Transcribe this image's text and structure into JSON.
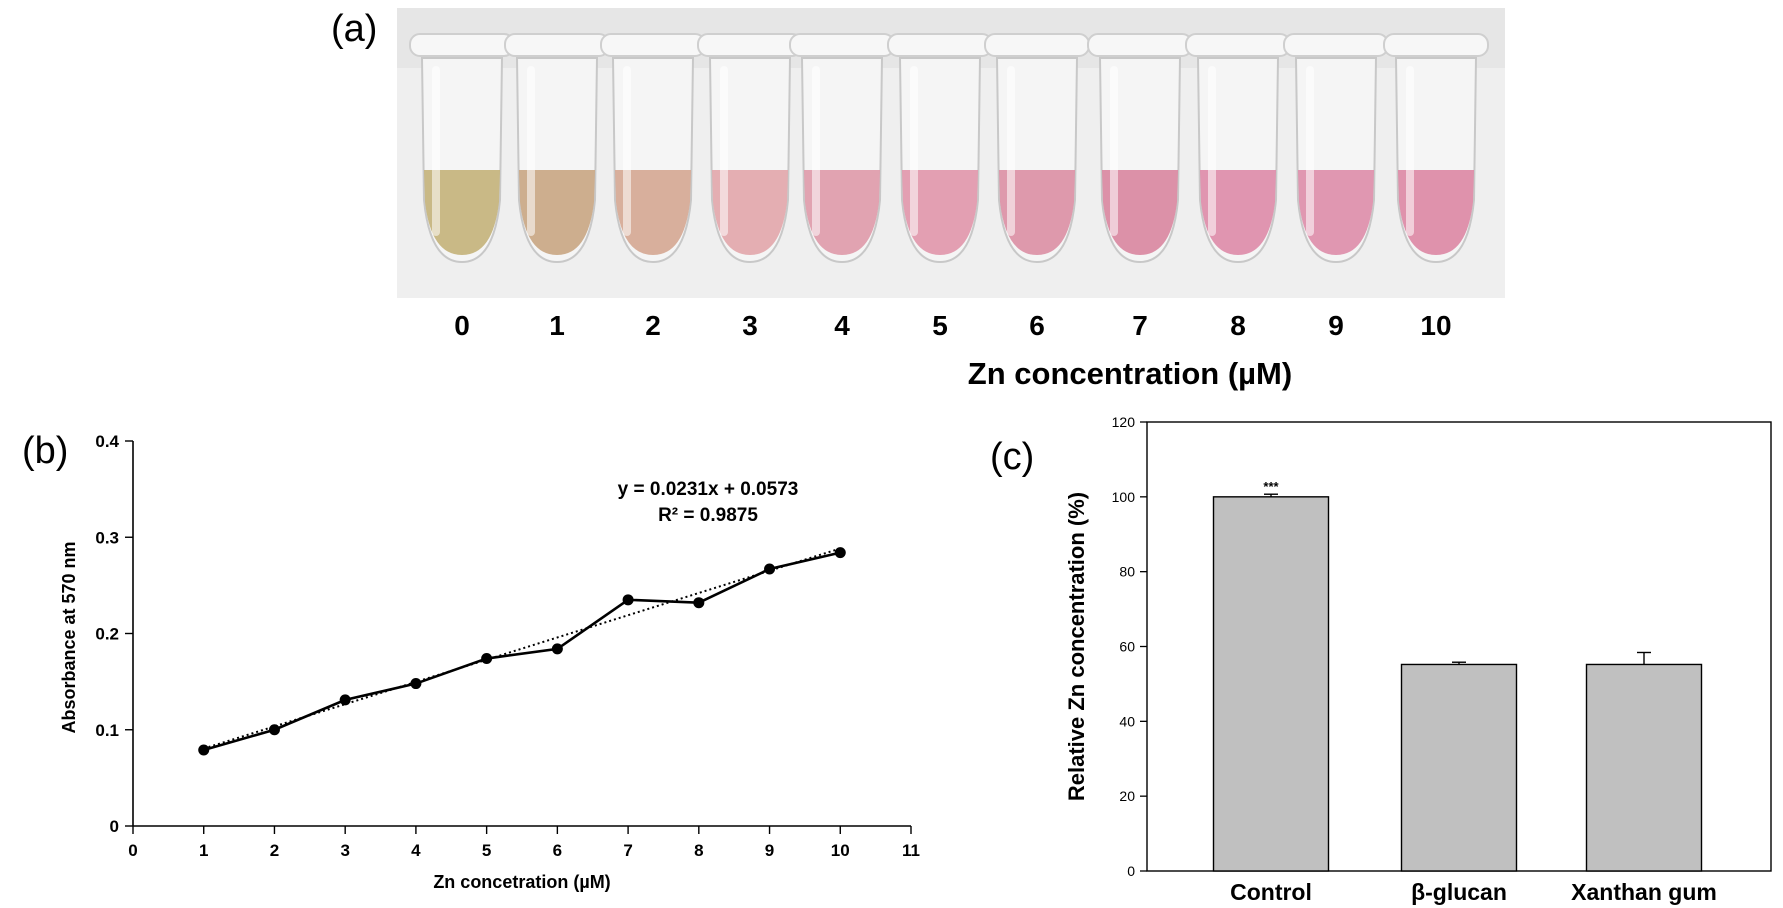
{
  "panels": {
    "a": "(a)",
    "b": "(b)",
    "c": "(c)"
  },
  "photo": {
    "tube_labels": [
      "0",
      "1",
      "2",
      "3",
      "4",
      "5",
      "6",
      "7",
      "8",
      "9",
      "10"
    ],
    "tube_colors": [
      "#c4b27a",
      "#c9a683",
      "#d5a792",
      "#e2a6ab",
      "#df9aaa",
      "#e196ab",
      "#dc8fa4",
      "#d986a0",
      "#de8ba8",
      "#de8daa",
      "#dd87a4"
    ],
    "axis_title": "Zn concentration (µM)"
  },
  "chart_data": [
    {
      "type": "line",
      "panel": "b",
      "x": [
        1,
        2,
        3,
        4,
        5,
        6,
        7,
        8,
        9,
        10
      ],
      "series": [
        {
          "values": [
            0.079,
            0.1,
            0.131,
            0.148,
            0.174,
            0.184,
            0.235,
            0.232,
            0.267,
            0.284
          ]
        }
      ],
      "trendline": {
        "slope": 0.0231,
        "intercept": 0.0573,
        "style": "dotted"
      },
      "annotations": [
        "y = 0.0231x + 0.0573",
        "R² = 0.9875"
      ],
      "xlabel": "Zn concetration (µM)",
      "ylabel": "Absorbance at 570 nm",
      "xlim": [
        0,
        11
      ],
      "ylim": [
        0,
        0.4
      ],
      "xticks": [
        "0",
        "1",
        "2",
        "3",
        "4",
        "5",
        "6",
        "7",
        "8",
        "9",
        "10",
        "11"
      ],
      "yticks": [
        "0",
        "0.1",
        "0.2",
        "0.3",
        "0.4"
      ],
      "grid": false
    },
    {
      "type": "bar",
      "panel": "c",
      "categories": [
        "Control",
        "β-glucan",
        "Xanthan gum"
      ],
      "values": [
        100,
        55.2,
        55.2
      ],
      "errors": [
        0.7,
        0.6,
        3.2
      ],
      "significance": [
        "***",
        "",
        ""
      ],
      "ylabel": "Relative Zn concentration (%)",
      "ylim": [
        0,
        120
      ],
      "yticks": [
        "0",
        "20",
        "40",
        "60",
        "80",
        "100",
        "120"
      ],
      "bar_color": "#c0c0c0",
      "grid": false
    }
  ]
}
